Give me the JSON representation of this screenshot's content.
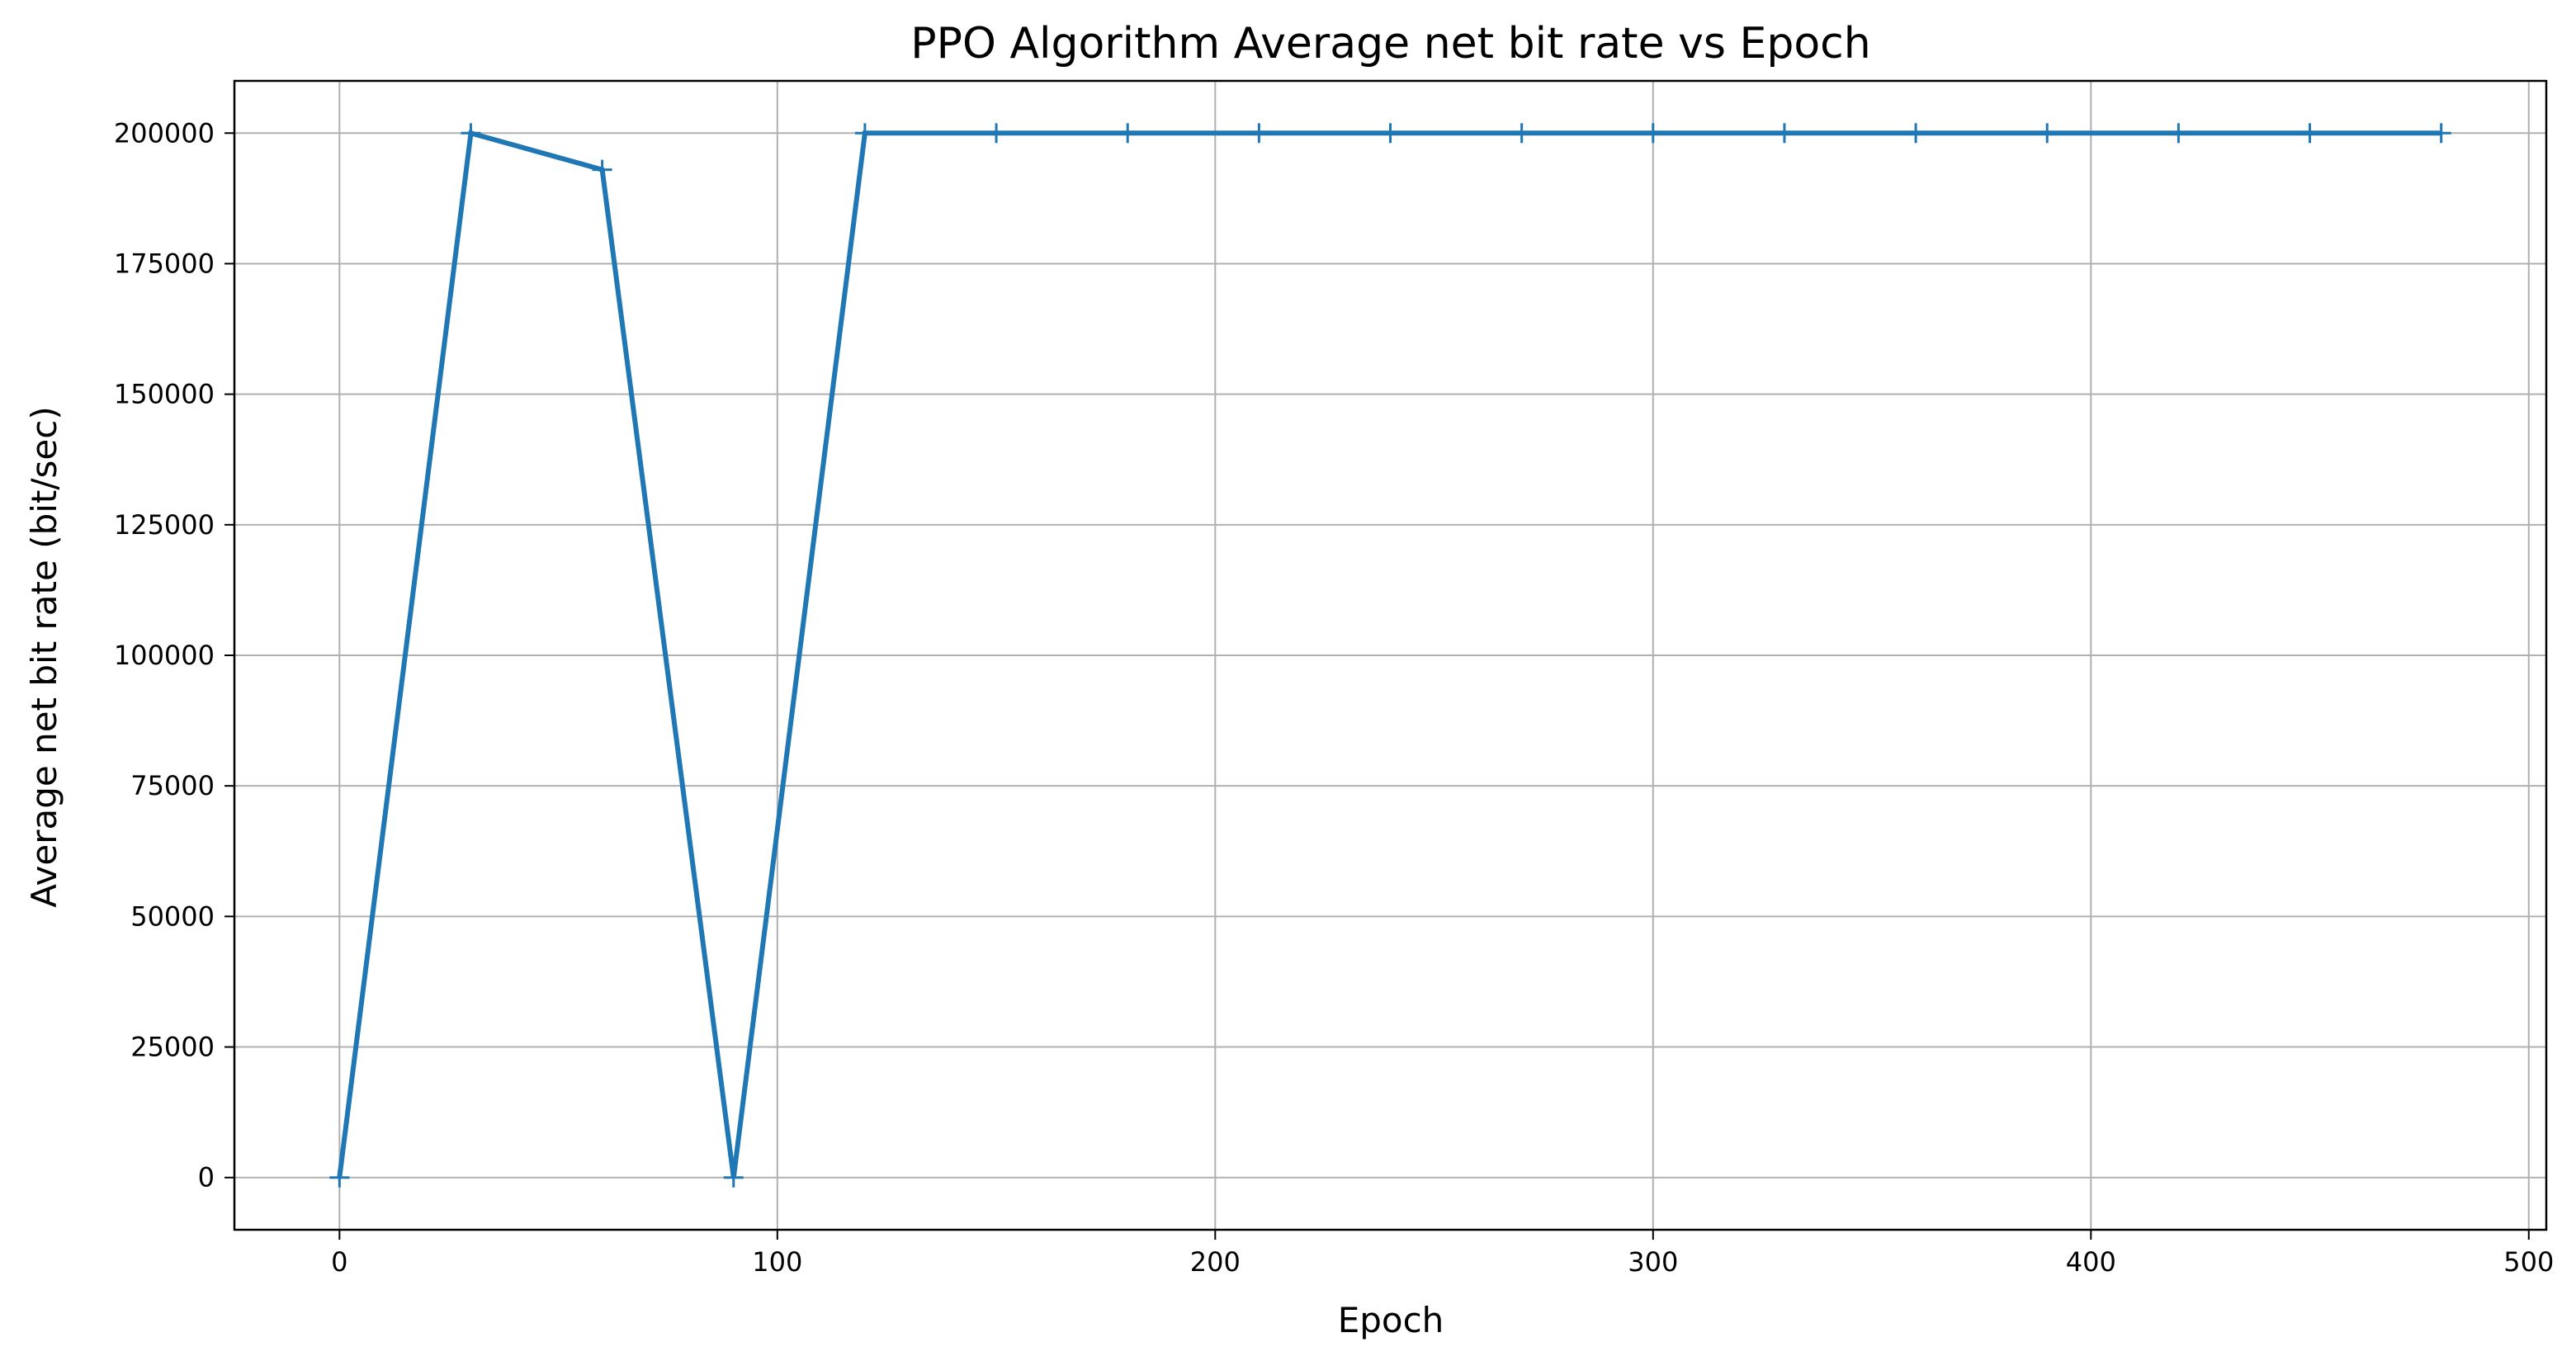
{
  "chart_data": {
    "type": "line",
    "title": "PPO Algorithm Average net bit rate vs Epoch",
    "xlabel": "Epoch",
    "ylabel": "Average net bit rate (bit/sec)",
    "xlim": [
      -24,
      504
    ],
    "ylim": [
      -10000,
      210000
    ],
    "xticks": [
      0,
      100,
      200,
      300,
      400,
      500
    ],
    "xtick_labels": [
      "0",
      "100",
      "200",
      "300",
      "400",
      "500"
    ],
    "yticks": [
      0,
      25000,
      50000,
      75000,
      100000,
      125000,
      150000,
      175000,
      200000
    ],
    "ytick_labels": [
      "0",
      "25000",
      "50000",
      "75000",
      "100000",
      "125000",
      "150000",
      "175000",
      "200000"
    ],
    "grid": true,
    "marker": "+",
    "colors": {
      "series": "#1f77b4",
      "grid": "#b0b0b0",
      "axes": "#000000"
    },
    "series": [
      {
        "x": [
          0,
          30,
          60,
          90,
          120,
          150,
          180,
          210,
          240,
          270,
          300,
          330,
          360,
          390,
          420,
          450,
          480
        ],
        "values": [
          0,
          200000,
          193000,
          0,
          200000,
          200000,
          200000,
          200000,
          200000,
          200000,
          200000,
          200000,
          200000,
          200000,
          200000,
          200000,
          200000
        ]
      }
    ]
  }
}
